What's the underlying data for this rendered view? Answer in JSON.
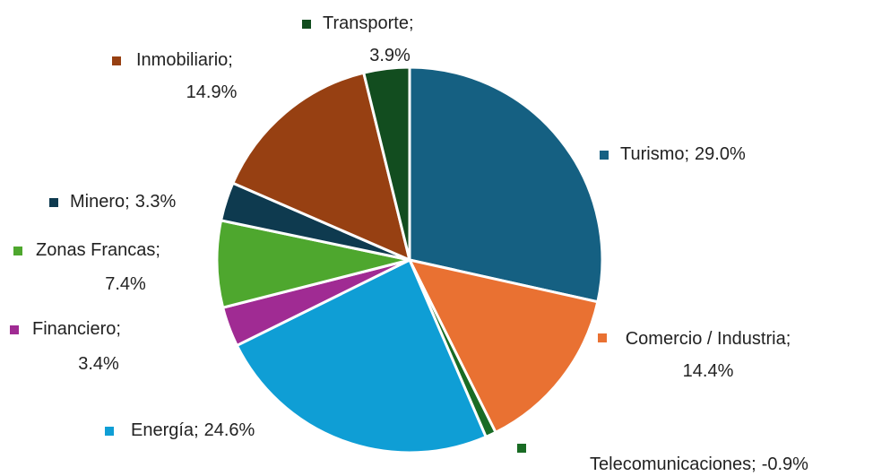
{
  "chart_data": {
    "type": "pie",
    "categories": [
      "Turismo",
      "Comercio / Industria",
      "Telecomunicaciones",
      "Energía",
      "Financiero",
      "Zonas Francas",
      "Minero",
      "Inmobiliario",
      "Transporte"
    ],
    "values": [
      29.0,
      14.4,
      -0.9,
      24.6,
      3.4,
      7.4,
      3.3,
      14.9,
      3.9
    ],
    "value_labels": [
      "29.0%",
      "14.4%",
      "-0.9%",
      "24.6%",
      "3.4%",
      "7.4%",
      "3.3%",
      "14.9%",
      "3.9%"
    ],
    "label_separator": ";",
    "colors": [
      "#156082",
      "#e97132",
      "#196b24",
      "#0f9ed5",
      "#a02b93",
      "#4ea72e",
      "#0e3a4f",
      "#974012",
      "#124d1f"
    ]
  }
}
